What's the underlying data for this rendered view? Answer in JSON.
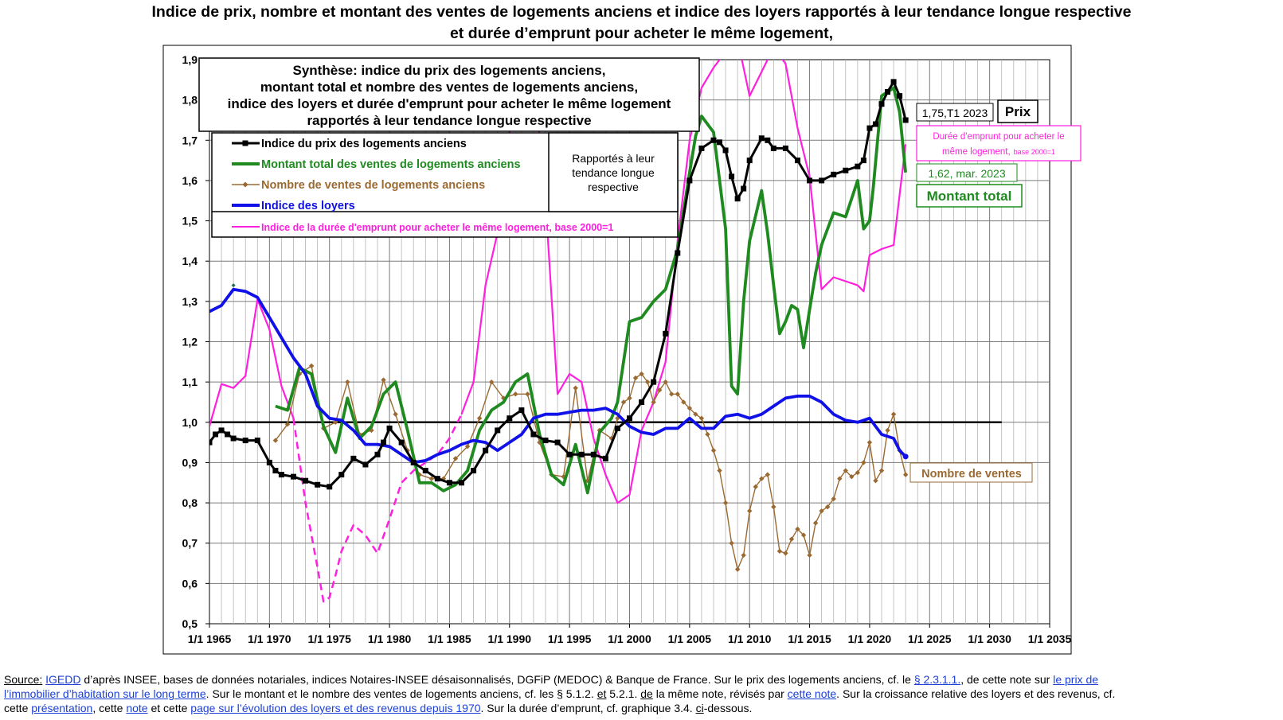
{
  "title": {
    "line1": "Indice de prix, nombre et montant des ventes de logements anciens et indice des loyers rapportés à leur tendance longue respective",
    "line2": "et durée d’emprunt pour acheter le même logement,"
  },
  "synthesis_box": {
    "line1": "Synthèse: indice du prix des logements anciens,",
    "line2": "montant total et nombre des ventes de logements anciens,",
    "line3": "indice des loyers et durée d'emprunt pour acheter le même logement",
    "line4": "rapportés à leur tendance longue respective"
  },
  "legend": {
    "side_note_line1": "Rapportés à leur",
    "side_note_line2": "tendance longue",
    "side_note_line3": "respective"
  },
  "annotations": {
    "price_value": "1,75,T1 2023",
    "price_label": "Prix",
    "duration_label_line1": "Durée d'emprunt pour acheter le",
    "duration_label_line2": "même logement,",
    "duration_label_base": "base 2000=1",
    "montant_value": "1,62, mar. 2023",
    "montant_label": "Montant total",
    "nombre_label": "Nombre de ventes"
  },
  "colors": {
    "prix": "#000000",
    "montant": "#1f8a1f",
    "nombre": "#9a6a32",
    "loyers": "#1010e8",
    "duree": "#ff1fde"
  },
  "chart_data": {
    "type": "line",
    "ylim": [
      0.5,
      1.9
    ],
    "y_ticks": [
      "0,5",
      "0,6",
      "0,7",
      "0,8",
      "0,9",
      "1,0",
      "1,1",
      "1,2",
      "1,3",
      "1,4",
      "1,5",
      "1,6",
      "1,7",
      "1,8",
      "1,9"
    ],
    "xlim": [
      1965,
      2035
    ],
    "x_ticks": [
      "1/1 1965",
      "1/1 1970",
      "1/1 1975",
      "1/1 1980",
      "1/1 1985",
      "1/1 1990",
      "1/1 1995",
      "1/1 2000",
      "1/1 2005",
      "1/1 2010",
      "1/1 2015",
      "1/1 2020",
      "1/1 2025",
      "1/1 2030",
      "1/1 2035"
    ],
    "grid": true,
    "reference_line": {
      "y": 1.0,
      "x_from": 1965,
      "x_to": 2031
    },
    "series": [
      {
        "name": "Indice du prix des logements anciens",
        "key": "prix",
        "x": [
          1965.0,
          1965.5,
          1966.0,
          1966.5,
          1967.0,
          1968.0,
          1969.0,
          1970.0,
          1970.5,
          1971.0,
          1972.0,
          1973.0,
          1974.0,
          1975.0,
          1976.0,
          1977.0,
          1978.0,
          1979.0,
          1979.5,
          1980.0,
          1981.0,
          1982.0,
          1983.0,
          1984.0,
          1985.0,
          1986.0,
          1987.0,
          1988.0,
          1989.0,
          1990.0,
          1991.0,
          1992.0,
          1993.0,
          1994.0,
          1995.0,
          1996.0,
          1997.0,
          1998.0,
          1999.0,
          2000.0,
          2001.0,
          2002.0,
          2003.0,
          2004.0,
          2005.0,
          2006.0,
          2007.0,
          2007.5,
          2008.0,
          2008.5,
          2009.0,
          2009.5,
          2010.0,
          2011.0,
          2011.5,
          2012.0,
          2013.0,
          2014.0,
          2015.0,
          2016.0,
          2017.0,
          2018.0,
          2019.0,
          2019.5,
          2020.0,
          2020.5,
          2021.0,
          2021.5,
          2022.0,
          2022.5,
          2023.0
        ],
        "y": [
          0.95,
          0.97,
          0.98,
          0.97,
          0.96,
          0.955,
          0.955,
          0.9,
          0.88,
          0.87,
          0.865,
          0.855,
          0.845,
          0.84,
          0.87,
          0.91,
          0.895,
          0.92,
          0.95,
          0.985,
          0.95,
          0.9,
          0.88,
          0.86,
          0.85,
          0.85,
          0.88,
          0.93,
          0.98,
          1.01,
          1.03,
          0.97,
          0.955,
          0.95,
          0.92,
          0.92,
          0.92,
          0.91,
          0.985,
          1.01,
          1.05,
          1.1,
          1.22,
          1.42,
          1.6,
          1.68,
          1.7,
          1.695,
          1.675,
          1.61,
          1.555,
          1.58,
          1.65,
          1.705,
          1.7,
          1.68,
          1.68,
          1.65,
          1.6,
          1.6,
          1.615,
          1.625,
          1.635,
          1.65,
          1.73,
          1.74,
          1.79,
          1.82,
          1.845,
          1.81,
          1.75
        ]
      },
      {
        "name": "Montant total des ventes de logements anciens",
        "key": "montant",
        "x": [
          1970.5,
          1971.5,
          1972.5,
          1973.5,
          1974.5,
          1975.5,
          1976.5,
          1977.5,
          1978.5,
          1979.5,
          1980.5,
          1981.5,
          1982.5,
          1983.5,
          1984.5,
          1985.5,
          1986.5,
          1987.5,
          1988.5,
          1989.5,
          1990.5,
          1991.5,
          1992.5,
          1993.5,
          1994.5,
          1995.5,
          1996.5,
          1997.5,
          1998.5,
          1999.0,
          2000.0,
          2001.0,
          2002.0,
          2003.0,
          2004.0,
          2005.0,
          2005.5,
          2006.0,
          2007.0,
          2008.0,
          2008.5,
          2009.0,
          2009.5,
          2010.0,
          2011.0,
          2011.5,
          2012.0,
          2012.5,
          2013.0,
          2013.5,
          2014.0,
          2014.5,
          2015.0,
          2015.5,
          2016.0,
          2017.0,
          2018.0,
          2019.0,
          2019.5,
          2020.0,
          2020.3,
          2021.0,
          2021.5,
          2022.0,
          2022.5,
          2023.0
        ],
        "y": [
          1.04,
          1.03,
          1.135,
          1.12,
          0.99,
          0.925,
          1.06,
          0.96,
          0.99,
          1.07,
          1.1,
          0.98,
          0.85,
          0.85,
          0.83,
          0.845,
          0.88,
          0.98,
          1.03,
          1.05,
          1.1,
          1.12,
          0.97,
          0.87,
          0.845,
          0.945,
          0.825,
          0.975,
          1.01,
          1.05,
          1.25,
          1.26,
          1.3,
          1.33,
          1.43,
          1.62,
          1.71,
          1.76,
          1.72,
          1.48,
          1.09,
          1.07,
          1.3,
          1.45,
          1.575,
          1.47,
          1.34,
          1.22,
          1.25,
          1.29,
          1.28,
          1.185,
          1.28,
          1.37,
          1.44,
          1.52,
          1.51,
          1.6,
          1.48,
          1.5,
          1.58,
          1.81,
          1.82,
          1.83,
          1.77,
          1.62
        ]
      },
      {
        "name": "Nombre de ventes de logements anciens",
        "key": "nombre",
        "x": [
          1967.0,
          1970.5,
          1971.5,
          1972.5,
          1973.5,
          1974.5,
          1975.5,
          1976.5,
          1977.5,
          1978.5,
          1979.5,
          1980.5,
          1981.5,
          1982.5,
          1983.5,
          1984.5,
          1985.5,
          1986.5,
          1987.5,
          1988.5,
          1989.5,
          1990.5,
          1991.5,
          1992.5,
          1993.5,
          1994.5,
          1995.5,
          1996.5,
          1997.5,
          1998.5,
          1999.0,
          1999.5,
          2000.0,
          2000.5,
          2001.0,
          2001.5,
          2002.0,
          2002.5,
          2003.0,
          2003.5,
          2004.0,
          2004.5,
          2005.0,
          2005.5,
          2006.0,
          2006.5,
          2007.0,
          2007.5,
          2008.0,
          2008.5,
          2009.0,
          2009.5,
          2010.0,
          2010.5,
          2011.0,
          2011.5,
          2012.0,
          2012.5,
          2013.0,
          2013.5,
          2014.0,
          2014.5,
          2015.0,
          2015.5,
          2016.0,
          2016.5,
          2017.0,
          2017.5,
          2018.0,
          2018.5,
          2019.0,
          2019.5,
          2020.0,
          2020.5,
          2021.0,
          2021.5,
          2022.0,
          2022.5,
          2023.0
        ],
        "y": [
          1.34,
          0.955,
          0.995,
          1.12,
          1.14,
          0.985,
          1.0,
          1.1,
          0.97,
          0.98,
          1.105,
          1.02,
          0.93,
          0.87,
          0.86,
          0.86,
          0.91,
          0.94,
          1.01,
          1.1,
          1.06,
          1.07,
          1.07,
          0.95,
          0.87,
          0.865,
          1.085,
          0.855,
          0.98,
          0.96,
          1.01,
          1.05,
          1.06,
          1.11,
          1.12,
          1.1,
          1.05,
          1.08,
          1.1,
          1.07,
          1.07,
          1.05,
          1.035,
          1.02,
          1.01,
          0.97,
          0.93,
          0.88,
          0.8,
          0.7,
          0.635,
          0.67,
          0.78,
          0.84,
          0.86,
          0.87,
          0.79,
          0.68,
          0.675,
          0.71,
          0.735,
          0.72,
          0.67,
          0.75,
          0.78,
          0.79,
          0.81,
          0.86,
          0.88,
          0.865,
          0.875,
          0.9,
          0.95,
          0.855,
          0.88,
          0.98,
          1.02,
          0.93,
          0.87
        ]
      },
      {
        "name": "Indice des loyers",
        "key": "loyers",
        "x": [
          1965.0,
          1966.0,
          1967.0,
          1968.0,
          1969.0,
          1970.0,
          1971.0,
          1972.0,
          1973.0,
          1974.0,
          1975.0,
          1976.0,
          1977.0,
          1978.0,
          1979.0,
          1980.0,
          1981.0,
          1982.0,
          1983.0,
          1984.0,
          1985.0,
          1986.0,
          1987.0,
          1988.0,
          1989.0,
          1990.0,
          1991.0,
          1992.0,
          1993.0,
          1994.0,
          1995.0,
          1996.0,
          1997.0,
          1998.0,
          1999.0,
          2000.0,
          2001.0,
          2002.0,
          2003.0,
          2004.0,
          2005.0,
          2006.0,
          2007.0,
          2008.0,
          2009.0,
          2010.0,
          2011.0,
          2012.0,
          2013.0,
          2014.0,
          2015.0,
          2016.0,
          2017.0,
          2018.0,
          2019.0,
          2020.0,
          2021.0,
          2022.0,
          2022.5,
          2023.0
        ],
        "y": [
          1.275,
          1.29,
          1.33,
          1.325,
          1.31,
          1.26,
          1.21,
          1.16,
          1.12,
          1.04,
          1.01,
          1.005,
          0.98,
          0.945,
          0.945,
          0.94,
          0.92,
          0.9,
          0.905,
          0.92,
          0.93,
          0.945,
          0.955,
          0.95,
          0.93,
          0.95,
          0.97,
          1.01,
          1.02,
          1.02,
          1.025,
          1.03,
          1.03,
          1.035,
          1.02,
          0.99,
          0.975,
          0.97,
          0.985,
          0.985,
          1.01,
          0.985,
          0.985,
          1.015,
          1.02,
          1.01,
          1.02,
          1.04,
          1.06,
          1.065,
          1.065,
          1.05,
          1.02,
          1.005,
          1.0,
          1.01,
          0.97,
          0.96,
          0.93,
          0.915
        ]
      },
      {
        "name": "Indice de la durée d'emprunt pour acheter le même logement, base 2000=1",
        "key": "duree",
        "segments": [
          {
            "dashed": false,
            "x": [
              1965.0,
              1966.0,
              1967.0,
              1968.0,
              1969.0,
              1970.0,
              1971.0,
              1972.0
            ],
            "y": [
              0.99,
              1.095,
              1.085,
              1.115,
              1.305,
              1.23,
              1.09,
              1.01
            ]
          },
          {
            "dashed": true,
            "x": [
              1972.0,
              1973.0,
              1974.0,
              1974.5,
              1975.0,
              1975.5,
              1976.0,
              1977.0,
              1978.0,
              1979.0,
              1980.0,
              1981.0,
              1982.0,
              1983.0,
              1984.0,
              1985.0,
              1986.0
            ],
            "y": [
              1.01,
              0.8,
              0.64,
              0.555,
              0.565,
              0.62,
              0.68,
              0.745,
              0.72,
              0.675,
              0.76,
              0.85,
              0.88,
              0.9,
              0.92,
              0.96,
              1.02
            ]
          },
          {
            "dashed": false,
            "x": [
              1986.0,
              1987.0,
              1988.0,
              1989.0,
              1990.0,
              1991.0,
              1992.0,
              1993.0,
              1994.0,
              1995.0,
              1996.0,
              1997.0,
              1998.0,
              1999.0,
              2000.0,
              2001.0,
              2002.0,
              2003.0,
              2004.0,
              2005.0,
              2006.0,
              2007.0,
              2008.0,
              2008.5,
              2009.0,
              2010.0,
              2011.0,
              2012.0,
              2013.0,
              2014.0,
              2015.0,
              2016.0,
              2017.0,
              2018.0,
              2019.0,
              2019.5,
              2020.0,
              2021.0,
              2022.0,
              2023.0
            ],
            "y": [
              1.02,
              1.1,
              1.34,
              1.47,
              1.72,
              1.85,
              1.87,
              1.55,
              1.07,
              1.12,
              1.1,
              0.96,
              0.87,
              0.8,
              0.82,
              0.98,
              1.05,
              1.15,
              1.45,
              1.7,
              1.83,
              1.88,
              1.92,
              1.95,
              1.95,
              1.81,
              1.87,
              1.93,
              1.89,
              1.73,
              1.61,
              1.33,
              1.36,
              1.35,
              1.34,
              1.325,
              1.415,
              1.43,
              1.44,
              1.69
            ]
          }
        ]
      }
    ]
  },
  "footer": {
    "p1": "Source:",
    "l1": "IGEDD",
    "p2": " d’après INSEE, bases de données notariales, indices Notaires-INSEE désaisonnalisés, DGFiP (MEDOC) & Banque de France.  Sur le prix des logements anciens, cf. le ",
    "l2": "§  2.3.1.1.",
    "p3": ", de cette note sur ",
    "l3": "le prix de",
    "l4": "l’immobilier d’habitation sur le long terme",
    "p4": ".  Sur le montant et le nombre des ventes de logements anciens, cf. les § 5.1.2. ",
    "u1": "et",
    "p5": " 5.2.1. ",
    "u2": "de",
    "p6": " la même note, révisés par ",
    "l5": "cette note",
    "p7": ".  Sur la croissance relative des loyers et des revenus, cf.",
    "p8": "cette ",
    "l6": "présentation",
    "p9": ", cette ",
    "l7": "note",
    "p10": " et cette ",
    "l8": "page sur l’évolution des loyers et des revenus depuis 1970",
    "p11": ".  Sur la durée d’emprunt, cf. graphique 3.4. ",
    "u3": "ci",
    "p12": "-dessous."
  }
}
